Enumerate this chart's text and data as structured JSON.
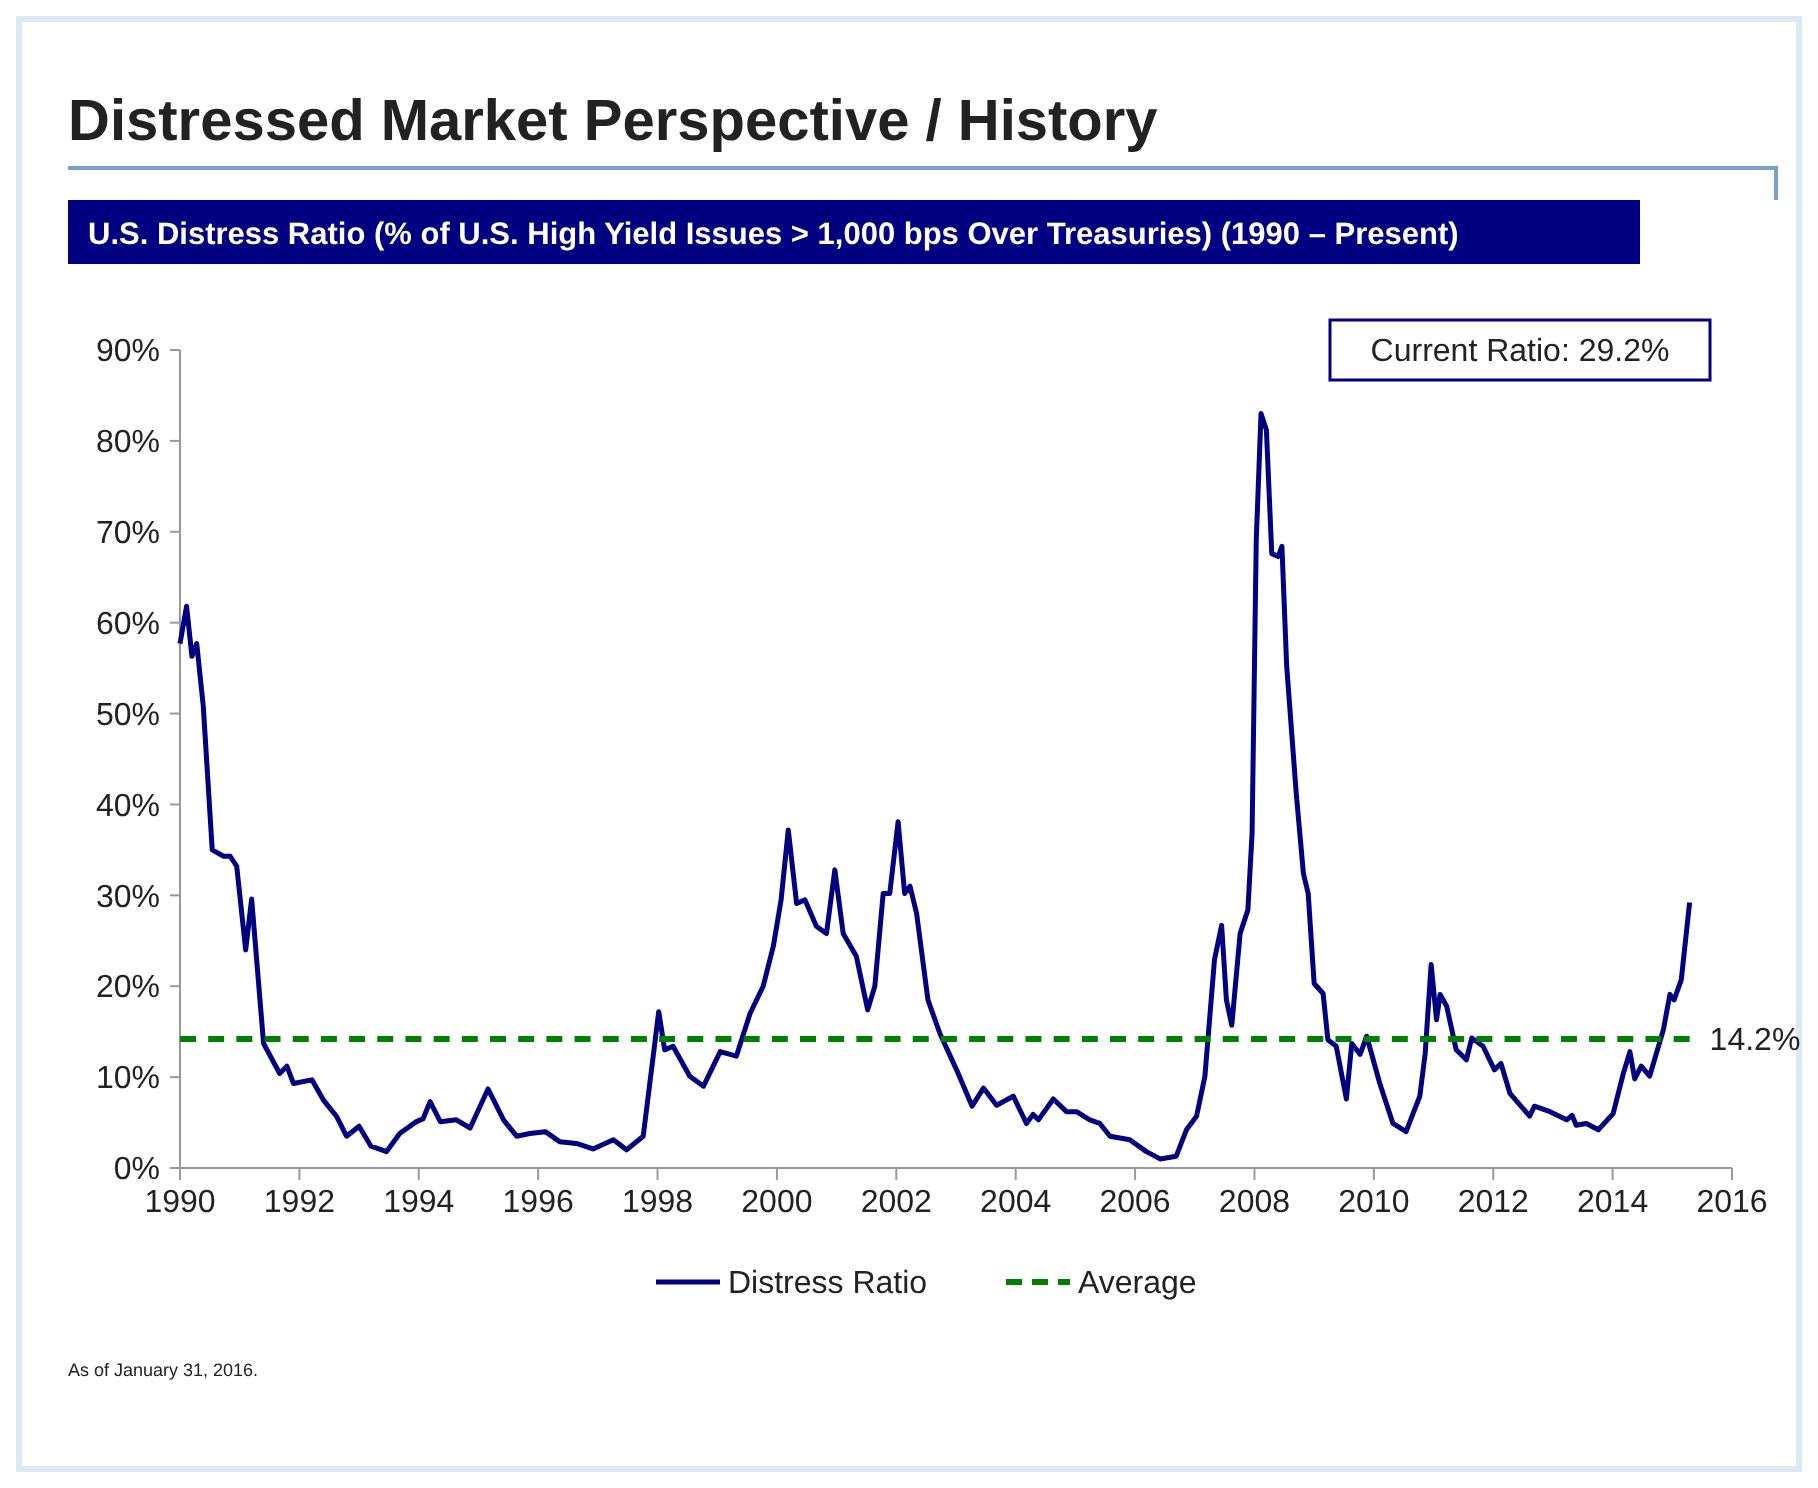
{
  "chart_data": {
    "type": "line",
    "title": "Distressed Market Perspective / History",
    "subtitle": "U.S. Distress Ratio (% of U.S. High Yield Issues > 1,000 bps Over Treasuries) (1990 – Present)",
    "xlim": [
      1990,
      2016
    ],
    "xticks": [
      1990,
      1992,
      1994,
      1996,
      1998,
      2000,
      2002,
      2004,
      2006,
      2008,
      2010,
      2012,
      2014,
      2016
    ],
    "ylim": [
      0,
      90
    ],
    "yticks": [
      {
        "value": 0,
        "label": "0%"
      },
      {
        "value": 10,
        "label": "10%"
      },
      {
        "value": 20,
        "label": "20%"
      },
      {
        "value": 30,
        "label": "30%"
      },
      {
        "value": 40,
        "label": "40%"
      },
      {
        "value": 50,
        "label": "50%"
      },
      {
        "value": 60,
        "label": "60%"
      },
      {
        "value": 70,
        "label": "70%"
      },
      {
        "value": 80,
        "label": "80%"
      },
      {
        "value": 90,
        "label": "90%"
      }
    ],
    "grid": false,
    "legend": "bottom",
    "marker": "none",
    "series": [
      {
        "name": "Distress Ratio",
        "color": "#000080",
        "line_style": "solid",
        "x": [
          1990.0,
          1990.11,
          1990.2,
          1990.28,
          1990.39,
          1990.54,
          1990.73,
          1990.84,
          1990.95,
          1991.1,
          1991.2,
          1991.4,
          1991.67,
          1991.79,
          1991.9,
          1992.21,
          1992.4,
          1992.62,
          1992.79,
          1993.0,
          1993.2,
          1993.46,
          1993.68,
          1993.96,
          1994.07,
          1994.19,
          1994.36,
          1994.63,
          1994.86,
          1995.16,
          1995.42,
          1995.64,
          1995.86,
          1996.12,
          1996.36,
          1996.64,
          1996.92,
          1997.26,
          1997.48,
          1997.76,
          1997.87,
          1998.02,
          1998.12,
          1998.26,
          1998.54,
          1998.77,
          1999.05,
          1999.32,
          1999.55,
          1999.77,
          1999.94,
          2000.07,
          2000.19,
          2000.33,
          2000.47,
          2000.66,
          2000.83,
          2000.97,
          2001.11,
          2001.33,
          2001.52,
          2001.64,
          2001.78,
          2001.89,
          2002.03,
          2002.14,
          2002.23,
          2002.34,
          2002.53,
          2002.73,
          2003.01,
          2003.27,
          2003.46,
          2003.68,
          2003.96,
          2004.18,
          2004.29,
          2004.38,
          2004.63,
          2004.85,
          2005.02,
          2005.24,
          2005.41,
          2005.58,
          2005.91,
          2006.19,
          2006.42,
          2006.69,
          2006.86,
          2007.03,
          2007.17,
          2007.33,
          2007.45,
          2007.53,
          2007.62,
          2007.76,
          2007.89,
          2007.96,
          2008.03,
          2008.11,
          2008.2,
          2008.29,
          2008.4,
          2008.46,
          2008.54,
          2008.7,
          2008.82,
          2008.9,
          2009.0,
          2009.15,
          2009.23,
          2009.37,
          2009.54,
          2009.63,
          2009.77,
          2009.88,
          2010.1,
          2010.32,
          2010.54,
          2010.77,
          2010.86,
          2010.96,
          2011.05,
          2011.11,
          2011.22,
          2011.38,
          2011.55,
          2011.64,
          2011.83,
          2012.02,
          2012.13,
          2012.28,
          2012.61,
          2012.69,
          2012.95,
          2013.23,
          2013.32,
          2013.39,
          2013.56,
          2013.76,
          2014.01,
          2014.18,
          2014.29,
          2014.37,
          2014.48,
          2014.62,
          2014.85,
          2014.96,
          2015.03,
          2015.15,
          2015.29
        ],
        "values": [
          57.7,
          61.8,
          56.3,
          57.7,
          50.8,
          35.0,
          34.3,
          34.3,
          33.2,
          24.0,
          29.6,
          13.7,
          10.4,
          11.2,
          9.3,
          9.7,
          7.5,
          5.7,
          3.5,
          4.6,
          2.4,
          1.8,
          3.8,
          5.1,
          5.4,
          7.3,
          5.1,
          5.3,
          4.4,
          8.7,
          5.3,
          3.5,
          3.8,
          4.0,
          2.9,
          2.7,
          2.1,
          3.1,
          2.0,
          3.5,
          9.3,
          17.2,
          13.0,
          13.4,
          10.1,
          9.0,
          12.8,
          12.3,
          17.0,
          20.0,
          24.4,
          29.5,
          37.2,
          29.1,
          29.5,
          26.6,
          25.8,
          32.8,
          25.8,
          23.3,
          17.4,
          20.0,
          30.2,
          30.2,
          38.1,
          30.2,
          31.0,
          28.0,
          18.5,
          14.8,
          10.8,
          6.8,
          8.8,
          6.9,
          7.9,
          4.9,
          5.9,
          5.3,
          7.6,
          6.2,
          6.2,
          5.3,
          4.9,
          3.5,
          3.1,
          1.8,
          1.0,
          1.3,
          4.2,
          5.7,
          10.1,
          22.9,
          26.7,
          18.5,
          15.7,
          25.8,
          28.4,
          36.8,
          69.1,
          83.0,
          81.2,
          67.6,
          67.3,
          68.4,
          55.2,
          41.2,
          32.4,
          30.2,
          20.3,
          19.2,
          14.1,
          13.4,
          7.6,
          13.7,
          12.5,
          14.5,
          9.3,
          4.9,
          4.0,
          7.9,
          12.6,
          22.4,
          16.3,
          19.1,
          17.8,
          13.0,
          11.9,
          14.3,
          13.4,
          10.8,
          11.5,
          8.2,
          5.7,
          6.8,
          6.2,
          5.3,
          5.8,
          4.7,
          4.9,
          4.2,
          6.0,
          10.4,
          12.8,
          9.8,
          11.2,
          10.1,
          15.2,
          19.1,
          18.5,
          20.7,
          29.2
        ]
      },
      {
        "name": "Average",
        "color": "#008000",
        "line_style": "dashed",
        "x": [
          1990.0,
          2015.29
        ],
        "values": [
          14.2,
          14.2
        ]
      }
    ],
    "annotations": [
      {
        "text": "14.2%",
        "x": 2015.29,
        "y": 14.2
      },
      "Current Ratio: 29.2%",
      "As of January 31, 2016."
    ]
  }
}
